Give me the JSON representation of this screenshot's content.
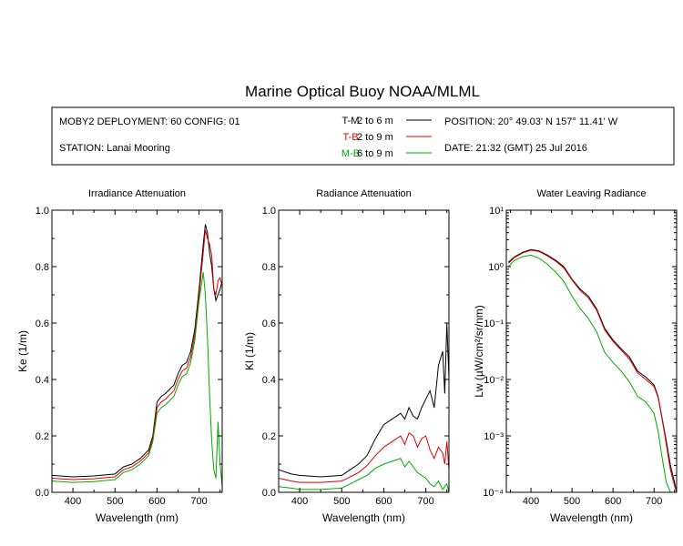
{
  "title": "Marine Optical Buoy NOAA/MLML",
  "info": {
    "deployment": "MOBY2 DEPLOYMENT: 60 CONFIG: 01",
    "station": "STATION: Lanai Mooring",
    "position": "POSITION: 20° 49.03' N   157° 11.41' W",
    "date": "DATE: 21:32 (GMT) 25 Jul 2016",
    "legend": [
      {
        "code": "T-M",
        "range": "2 to 6  m",
        "color": "#000000"
      },
      {
        "code": "T-B",
        "range": "2 to 9  m",
        "color": "#dd0000"
      },
      {
        "code": "M-B",
        "range": "6 to 9  m",
        "color": "#00aa00"
      }
    ]
  },
  "chart_data": [
    {
      "type": "line",
      "title": "Irradiance Attenuation",
      "xlabel": "Wavelength (nm)",
      "ylabel": "Ke  (1/m)",
      "xlim": [
        350,
        755
      ],
      "ylim": [
        0,
        1.0
      ],
      "xticks": [
        "400",
        "500",
        "600",
        "700"
      ],
      "yticks": [
        "0.0",
        "0.2",
        "0.4",
        "0.6",
        "0.8",
        "1.0"
      ],
      "series": [
        {
          "color": "#000000",
          "x": [
            350,
            400,
            450,
            500,
            520,
            540,
            560,
            580,
            590,
            600,
            610,
            620,
            640,
            650,
            660,
            670,
            680,
            690,
            700,
            710,
            715,
            720,
            725,
            730,
            735,
            740,
            745,
            750,
            755
          ],
          "y": [
            0.06,
            0.055,
            0.058,
            0.065,
            0.09,
            0.1,
            0.12,
            0.15,
            0.2,
            0.32,
            0.34,
            0.35,
            0.38,
            0.42,
            0.45,
            0.46,
            0.5,
            0.58,
            0.72,
            0.88,
            0.95,
            0.92,
            0.85,
            0.8,
            0.72,
            0.68,
            0.7,
            0.72,
            0.75
          ]
        },
        {
          "color": "#dd0000",
          "x": [
            350,
            400,
            450,
            500,
            520,
            540,
            560,
            580,
            590,
            600,
            610,
            620,
            640,
            650,
            660,
            670,
            680,
            690,
            700,
            710,
            715,
            720,
            725,
            730,
            735,
            740,
            745,
            750,
            755
          ],
          "y": [
            0.05,
            0.045,
            0.048,
            0.055,
            0.08,
            0.09,
            0.11,
            0.14,
            0.19,
            0.3,
            0.32,
            0.33,
            0.36,
            0.4,
            0.43,
            0.44,
            0.48,
            0.56,
            0.7,
            0.85,
            0.93,
            0.9,
            0.88,
            0.84,
            0.72,
            0.7,
            0.75,
            0.76,
            0.73
          ]
        },
        {
          "color": "#00aa00",
          "x": [
            350,
            400,
            450,
            500,
            520,
            540,
            560,
            580,
            590,
            600,
            610,
            620,
            640,
            650,
            660,
            670,
            680,
            690,
            700,
            710,
            715,
            720,
            725,
            730,
            735,
            740,
            745,
            750,
            755
          ],
          "y": [
            0.04,
            0.035,
            0.038,
            0.045,
            0.07,
            0.08,
            0.1,
            0.13,
            0.18,
            0.28,
            0.3,
            0.31,
            0.34,
            0.38,
            0.41,
            0.42,
            0.46,
            0.54,
            0.68,
            0.78,
            0.7,
            0.55,
            0.35,
            0.18,
            0.08,
            0.05,
            0.25,
            0.1,
            0.02
          ]
        }
      ]
    },
    {
      "type": "line",
      "title": "Radiance Attenuation",
      "xlabel": "Wavelength (nm)",
      "ylabel": "Kl  (1/m)",
      "xlim": [
        350,
        755
      ],
      "ylim": [
        0,
        1.0
      ],
      "xticks": [
        "400",
        "500",
        "600",
        "700"
      ],
      "yticks": [
        "0.0",
        "0.2",
        "0.4",
        "0.6",
        "0.8",
        "1.0"
      ],
      "series": [
        {
          "color": "#000000",
          "x": [
            350,
            380,
            400,
            450,
            500,
            520,
            540,
            560,
            580,
            600,
            620,
            640,
            650,
            660,
            670,
            680,
            690,
            700,
            710,
            720,
            730,
            740,
            745,
            750,
            755
          ],
          "y": [
            0.08,
            0.065,
            0.06,
            0.055,
            0.06,
            0.08,
            0.1,
            0.13,
            0.19,
            0.24,
            0.26,
            0.28,
            0.26,
            0.3,
            0.27,
            0.26,
            0.3,
            0.33,
            0.36,
            0.3,
            0.45,
            0.5,
            0.35,
            0.6,
            0.4
          ]
        },
        {
          "color": "#dd0000",
          "x": [
            350,
            380,
            400,
            450,
            500,
            520,
            540,
            560,
            580,
            600,
            620,
            640,
            650,
            660,
            670,
            680,
            690,
            700,
            710,
            720,
            730,
            740,
            745,
            750,
            755
          ],
          "y": [
            0.05,
            0.04,
            0.035,
            0.035,
            0.04,
            0.055,
            0.07,
            0.095,
            0.13,
            0.16,
            0.18,
            0.2,
            0.17,
            0.21,
            0.2,
            0.16,
            0.19,
            0.2,
            0.15,
            0.12,
            0.16,
            0.14,
            0.1,
            0.18,
            0.08
          ]
        },
        {
          "color": "#00aa00",
          "x": [
            350,
            380,
            400,
            450,
            500,
            520,
            540,
            560,
            580,
            600,
            620,
            640,
            650,
            660,
            670,
            680,
            690,
            700,
            710,
            720,
            730,
            740,
            745,
            750,
            755
          ],
          "y": [
            0.02,
            0.015,
            0.01,
            0.01,
            0.015,
            0.03,
            0.045,
            0.06,
            0.085,
            0.1,
            0.11,
            0.12,
            0.09,
            0.11,
            0.09,
            0.07,
            0.06,
            0.05,
            0.03,
            0.02,
            0.04,
            0.01,
            0.02,
            0.03,
            0.0
          ]
        }
      ]
    },
    {
      "type": "line",
      "title": "Water Leaving Radiance",
      "xlabel": "Wavelength (nm)",
      "ylabel": "Lw  (µW/cm²/sr/nm)",
      "xlim": [
        340,
        755
      ],
      "ylim": [
        0.0001,
        10
      ],
      "yscale": "log",
      "xticks": [
        "400",
        "500",
        "600",
        "700"
      ],
      "yticks": [
        "10⁻⁴",
        "10⁻³",
        "10⁻²",
        "10⁻¹",
        "10⁰",
        "10¹"
      ],
      "series": [
        {
          "color": "#000000",
          "x": [
            345,
            360,
            380,
            400,
            420,
            440,
            460,
            480,
            500,
            520,
            540,
            560,
            580,
            600,
            620,
            640,
            660,
            680,
            700,
            710,
            720,
            730,
            740,
            750,
            755
          ],
          "y": [
            1.2,
            1.5,
            1.8,
            2.0,
            1.9,
            1.6,
            1.3,
            1.0,
            0.6,
            0.4,
            0.3,
            0.18,
            0.08,
            0.05,
            0.035,
            0.025,
            0.014,
            0.011,
            0.008,
            0.005,
            0.002,
            0.0008,
            0.0003,
            0.00015,
            0.0001
          ]
        },
        {
          "color": "#dd0000",
          "x": [
            345,
            360,
            380,
            400,
            420,
            440,
            460,
            480,
            500,
            520,
            540,
            560,
            580,
            600,
            620,
            640,
            660,
            680,
            700,
            710,
            720,
            730,
            740,
            750,
            755
          ],
          "y": [
            1.15,
            1.45,
            1.75,
            1.95,
            1.85,
            1.55,
            1.25,
            0.95,
            0.58,
            0.38,
            0.28,
            0.17,
            0.075,
            0.047,
            0.033,
            0.023,
            0.013,
            0.01,
            0.0075,
            0.0048,
            0.0019,
            0.0007,
            0.00025,
            0.00013,
            0.0001
          ]
        },
        {
          "color": "#00aa00",
          "x": [
            345,
            360,
            380,
            400,
            420,
            440,
            460,
            480,
            500,
            520,
            540,
            560,
            580,
            600,
            620,
            640,
            660,
            680,
            700,
            710,
            720,
            730,
            740,
            750
          ],
          "y": [
            1.0,
            1.3,
            1.5,
            1.6,
            1.4,
            1.1,
            0.8,
            0.55,
            0.3,
            0.18,
            0.12,
            0.07,
            0.03,
            0.02,
            0.014,
            0.009,
            0.005,
            0.004,
            0.0025,
            0.0012,
            0.0004,
            0.00015,
            0.0001,
            0.0001
          ]
        }
      ]
    }
  ]
}
